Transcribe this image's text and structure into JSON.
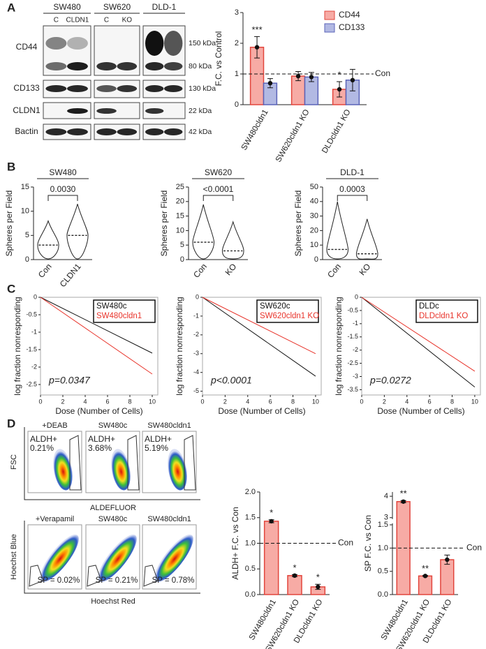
{
  "figure": {
    "panel_labels": [
      "A",
      "B",
      "C",
      "D"
    ],
    "blot": {
      "cell_lines": [
        "SW480",
        "SW620",
        "DLD-1"
      ],
      "lanes": [
        [
          "C",
          "CLDN1"
        ],
        [
          "C",
          "KO"
        ]
      ],
      "rows": [
        {
          "label": "CD44",
          "sizes": [
            "150 kDa",
            "80 kDa"
          ]
        },
        {
          "label": "CD133",
          "sizes": [
            "130 kDa"
          ]
        },
        {
          "label": "CLDN1",
          "sizes": [
            "22 kDa"
          ]
        },
        {
          "label": "Bactin",
          "sizes": [
            "42 kDa"
          ]
        }
      ]
    },
    "flow": {
      "aldh": {
        "panels": [
          {
            "title": "+DEAB",
            "gate": "ALDH+",
            "pct": "0.21%"
          },
          {
            "title": "SW480c",
            "gate": "ALDH+",
            "pct": "3.68%"
          },
          {
            "title": "SW480cldn1",
            "gate": "ALDH+",
            "pct": "5.19%"
          }
        ],
        "y_label": "FSC",
        "x_label": "ALDEFLUOR"
      },
      "sp": {
        "panels": [
          {
            "title": "+Verapamil",
            "pct": "SP = 0.02%"
          },
          {
            "title": "SW480c",
            "pct": "SP = 0.21%"
          },
          {
            "title": "SW480cldn1",
            "pct": "SP = 0.78%"
          }
        ],
        "y_label": "Hoechst Blue",
        "x_label": "Hoechst Red"
      }
    }
  },
  "chart_data": [
    {
      "type": "bar",
      "y_label": "F.C. vs Control",
      "categories": [
        "SW480cldn1",
        "SW620cldn1 KO",
        "DLDcldn1 KO"
      ],
      "series": [
        {
          "name": "CD44",
          "color": "#f7aba5",
          "edgecolor": "#e2453c",
          "values": [
            1.87,
            0.93,
            0.5
          ],
          "errors": [
            0.35,
            0.15,
            0.25
          ]
        },
        {
          "name": "CD133",
          "color": "#b2b9e3",
          "edgecolor": "#5a63b8",
          "values": [
            0.7,
            0.9,
            0.8
          ],
          "errors": [
            0.15,
            0.15,
            0.35
          ]
        }
      ],
      "ylim": [
        0,
        3
      ],
      "yticks": [
        0,
        1,
        2,
        3
      ],
      "legend": "upper right",
      "reference": {
        "value": 1,
        "label": "Con"
      },
      "annotations": [
        {
          "text": "***",
          "category": "SW480cldn1",
          "series": "CD44"
        },
        {
          "text": "*",
          "category": "DLDcldn1 KO",
          "series": "CD44"
        }
      ]
    },
    {
      "type": "violin",
      "title": "SW480",
      "y_label": "Spheres per Field",
      "categories": [
        "Con",
        "CLDN1"
      ],
      "values": [
        3,
        5
      ],
      "max": [
        8,
        11.5
      ],
      "ylim": [
        0,
        15
      ],
      "yticks": [
        0,
        5,
        10,
        15
      ],
      "annotation": "0.0030"
    },
    {
      "type": "violin",
      "title": "SW620",
      "y_label": "Spheres per Field",
      "categories": [
        "Con",
        "KO"
      ],
      "values": [
        6,
        3
      ],
      "max": [
        19,
        13
      ],
      "ylim": [
        0,
        25
      ],
      "yticks": [
        0,
        5,
        10,
        15,
        20,
        25
      ],
      "annotation": "<0.0001"
    },
    {
      "type": "violin",
      "title": "DLD-1",
      "y_label": "Spheres per Field",
      "categories": [
        "Con",
        "KO"
      ],
      "values": [
        7,
        4
      ],
      "max": [
        40,
        28
      ],
      "ylim": [
        0,
        50
      ],
      "yticks": [
        0,
        10,
        20,
        30,
        40,
        50
      ],
      "annotation": "0.0003"
    },
    {
      "type": "line",
      "x_label": "Dose (Number of Cells)",
      "y_label": "log fraction nonresponding",
      "x": [
        0,
        10
      ],
      "series": [
        {
          "name": "SW480c",
          "color": "#111111",
          "values": [
            0,
            -1.6
          ]
        },
        {
          "name": "SW480cldn1",
          "color": "#e8332a",
          "values": [
            0,
            -2.2
          ]
        }
      ],
      "xlim": [
        0,
        10.5
      ],
      "xticks": [
        0,
        2,
        4,
        6,
        8,
        10
      ],
      "ylim": [
        -2.8,
        0
      ],
      "yticks": [
        0,
        -0.5,
        -1,
        -1.5,
        -2,
        -2.5
      ],
      "legend": "upper right",
      "annotation": "p=0.0347"
    },
    {
      "type": "line",
      "x_label": "Dose (Number of Cells)",
      "y_label": "log fraction nonresponding",
      "x": [
        0,
        10
      ],
      "series": [
        {
          "name": "SW620c",
          "color": "#111111",
          "values": [
            0,
            -4.2
          ]
        },
        {
          "name": "SW620cldn1 KO",
          "color": "#e8332a",
          "values": [
            0,
            -3
          ]
        }
      ],
      "xlim": [
        0,
        10.5
      ],
      "xticks": [
        0,
        2,
        4,
        6,
        8,
        10
      ],
      "ylim": [
        -5.2,
        0
      ],
      "yticks": [
        0,
        -1,
        -2,
        -3,
        -4,
        -5
      ],
      "legend": "upper right",
      "annotation": "p<0.0001"
    },
    {
      "type": "line",
      "x_label": "Dose (Number of Cells)",
      "y_label": "log fraction nonresponding",
      "x": [
        0,
        10
      ],
      "series": [
        {
          "name": "DLDc",
          "color": "#111111",
          "values": [
            0,
            -3.4
          ]
        },
        {
          "name": "DLDcldn1 KO",
          "color": "#e8332a",
          "values": [
            0,
            -2.8
          ]
        }
      ],
      "xlim": [
        0,
        10.5
      ],
      "xticks": [
        0,
        2,
        4,
        6,
        8,
        10
      ],
      "ylim": [
        -3.7,
        0
      ],
      "yticks": [
        0,
        -0.5,
        -1,
        -1.5,
        -2,
        -2.5,
        -3,
        -3.5
      ],
      "legend": "upper right",
      "annotation": "p=0.0272"
    },
    {
      "type": "bar",
      "y_label": "ALDH+ F.C. vs Con",
      "categories": [
        "SW480cldn1",
        "SW620cldn1 KO",
        "DLDcldn1 KO"
      ],
      "series": [
        {
          "color": "#f7aba5",
          "edgecolor": "#e2453c",
          "values": [
            1.43,
            0.37,
            0.15
          ],
          "errors": [
            0.03,
            0.02,
            0.05
          ]
        }
      ],
      "ylim": [
        0,
        2
      ],
      "yticks": [
        {
          "value": 0,
          "label": "0.0"
        },
        0.5,
        {
          "value": 1,
          "label": "1.0"
        },
        1.5,
        {
          "value": 2,
          "label": "2.0"
        }
      ],
      "reference": {
        "value": 1,
        "label": "Con"
      },
      "annotations": [
        {
          "text": "*",
          "category": "SW480cldn1"
        },
        {
          "text": "*",
          "category": "SW620cldn1 KO"
        },
        {
          "text": "*",
          "category": "DLDcldn1 KO"
        }
      ]
    },
    {
      "type": "bar",
      "y_label": "SP F.C. vs Con",
      "categories": [
        "SW480cldn1",
        "SW620cldn1 KO",
        "DLDcldn1 KO"
      ],
      "series": [
        {
          "color": "#f7aba5",
          "edgecolor": "#e2453c",
          "values": [
            3.75,
            0.4,
            0.75
          ],
          "errors": [
            0.05,
            0.01,
            0.1
          ]
        }
      ],
      "ylim": [
        0,
        4.2
      ],
      "axis_break": [
        1.5,
        3
      ],
      "yticks": [
        {
          "value": 0,
          "label": "0.0"
        },
        0.5,
        {
          "value": 1,
          "label": "1.0"
        },
        1.5,
        3,
        4
      ],
      "reference": {
        "value": 1,
        "label": "Con"
      },
      "annotations": [
        {
          "text": "**",
          "category": "SW480cldn1"
        },
        {
          "text": "**",
          "category": "SW620cldn1 KO"
        }
      ]
    }
  ]
}
